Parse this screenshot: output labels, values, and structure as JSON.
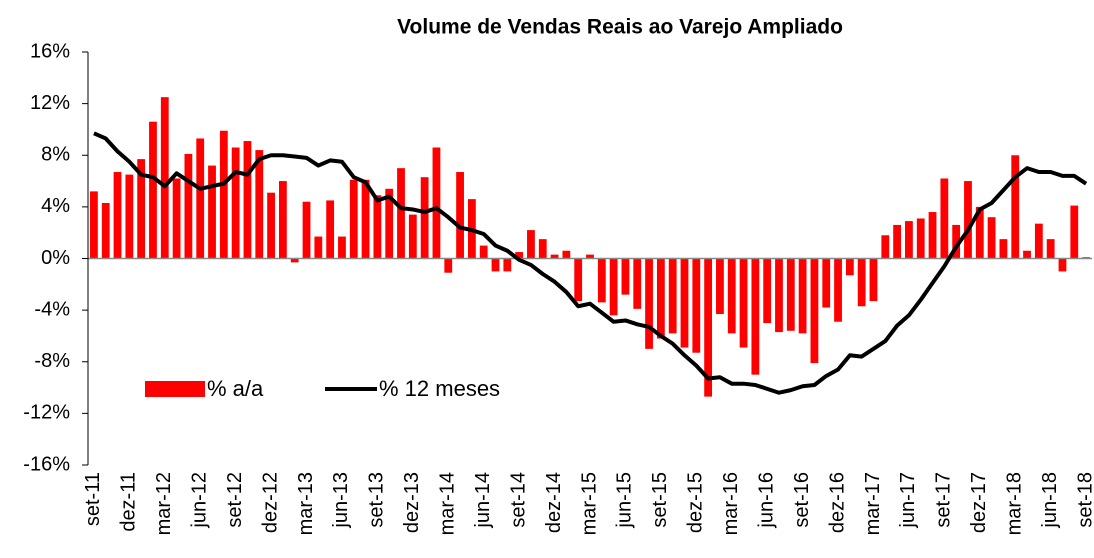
{
  "chart_data": {
    "type": "bar_line",
    "title": "Volume de Vendas Reais ao Varejo Ampliado",
    "categories": [
      "set-11",
      null,
      null,
      "dez-11",
      null,
      null,
      "mar-12",
      null,
      null,
      "jun-12",
      null,
      null,
      "set-12",
      null,
      null,
      "dez-12",
      null,
      null,
      "mar-13",
      null,
      null,
      "jun-13",
      null,
      null,
      "set-13",
      null,
      null,
      "dez-13",
      null,
      null,
      "mar-14",
      null,
      null,
      "jun-14",
      null,
      null,
      "set-14",
      null,
      null,
      "dez-14",
      null,
      null,
      "mar-15",
      null,
      null,
      "jun-15",
      null,
      null,
      "set-15",
      null,
      null,
      "dez-15",
      null,
      null,
      "mar-16",
      null,
      null,
      "jun-16",
      null,
      null,
      "set-16",
      null,
      null,
      "dez-16",
      null,
      null,
      "mar-17",
      null,
      null,
      "jun-17",
      null,
      null,
      "set-17",
      null,
      null,
      "dez-17",
      null,
      null,
      "mar-18",
      null,
      null,
      "jun-18",
      null,
      null,
      "set-18"
    ],
    "series": [
      {
        "name": "% a/a",
        "kind": "bar",
        "color": "#ff0000",
        "values": [
          5.2,
          4.3,
          6.7,
          6.5,
          7.7,
          10.6,
          12.5,
          6.2,
          8.1,
          9.3,
          7.2,
          9.9,
          8.6,
          9.1,
          8.4,
          5.1,
          6.0,
          -0.3,
          4.4,
          1.7,
          4.5,
          1.7,
          6.1,
          6.1,
          4.9,
          5.4,
          7.0,
          3.4,
          6.3,
          8.6,
          -1.1,
          6.7,
          4.6,
          1.0,
          -1.0,
          -1.0,
          0.5,
          2.2,
          1.5,
          0.3,
          0.6,
          -3.3,
          0.3,
          -3.4,
          -4.4,
          -2.8,
          -3.9,
          -7.0,
          -6.2,
          -5.8,
          -6.9,
          -7.3,
          -10.7,
          -4.3,
          -5.8,
          -6.9,
          -9.0,
          -5.0,
          -5.7,
          -5.6,
          -5.8,
          -8.1,
          -3.8,
          -4.9,
          -1.3,
          -3.7,
          -3.3,
          1.8,
          2.6,
          2.9,
          3.1,
          3.6,
          6.2,
          2.6,
          6.0,
          4.0,
          3.2,
          1.5,
          8.0,
          0.6,
          2.7,
          1.5,
          -1.0,
          4.1,
          0.1
        ]
      },
      {
        "name": "% 12 meses",
        "kind": "line",
        "color": "#000000",
        "values": [
          9.7,
          9.3,
          8.3,
          7.5,
          6.5,
          6.3,
          5.6,
          6.6,
          6.0,
          5.4,
          5.6,
          5.8,
          6.7,
          6.5,
          7.7,
          8.0,
          8.0,
          7.9,
          7.8,
          7.2,
          7.6,
          7.5,
          6.3,
          5.9,
          4.5,
          4.8,
          3.9,
          3.8,
          3.6,
          3.9,
          3.2,
          2.4,
          2.2,
          1.9,
          1.0,
          0.6,
          -0.1,
          -0.5,
          -1.2,
          -1.8,
          -2.6,
          -3.7,
          -3.5,
          -4.2,
          -4.9,
          -4.8,
          -5.1,
          -5.3,
          -6.0,
          -6.6,
          -7.5,
          -8.3,
          -9.3,
          -9.2,
          -9.7,
          -9.7,
          -9.8,
          -10.1,
          -10.4,
          -10.2,
          -9.9,
          -9.8,
          -9.1,
          -8.6,
          -7.5,
          -7.6,
          -7.0,
          -6.4,
          -5.2,
          -4.4,
          -3.2,
          -1.9,
          -0.6,
          0.9,
          2.2,
          3.8,
          4.3,
          5.3,
          6.3,
          7.0,
          6.7,
          6.7,
          6.4,
          6.4,
          5.8
        ]
      }
    ],
    "ylim": [
      -16,
      16
    ],
    "yticks": [
      {
        "value": -16,
        "label": "-16%"
      },
      {
        "value": -12,
        "label": "-12%"
      },
      {
        "value": -8,
        "label": "-8%"
      },
      {
        "value": -4,
        "label": "-4%"
      },
      {
        "value": 0,
        "label": "0%"
      },
      {
        "value": 4,
        "label": "4%"
      },
      {
        "value": 8,
        "label": "8%"
      },
      {
        "value": 12,
        "label": "12%"
      },
      {
        "value": 16,
        "label": "16%"
      }
    ],
    "grid": false,
    "legend": "lower left"
  }
}
